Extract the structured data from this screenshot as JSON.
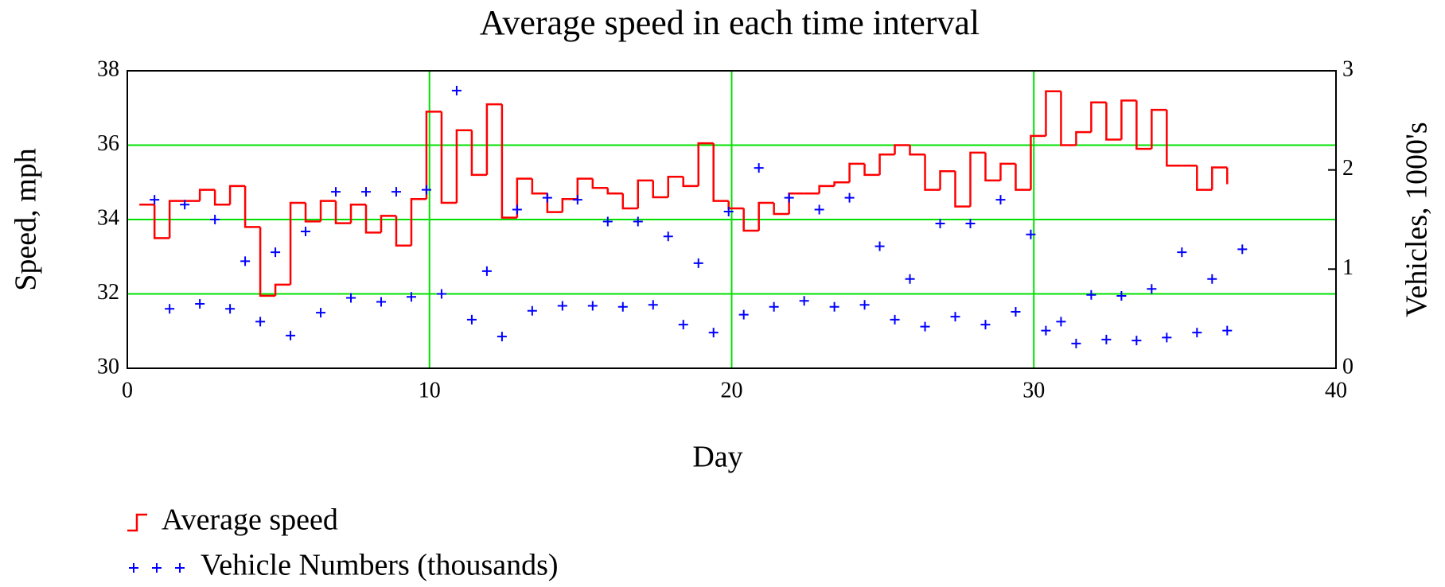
{
  "chart_data": {
    "type": "step",
    "title": "Average speed in each time interval",
    "x_label": "Day",
    "y_label": "Speed, mph",
    "y2_label": "Vehicles, 1000's",
    "xlim": [
      0,
      40
    ],
    "xticks": [
      0,
      10,
      20,
      30,
      40
    ],
    "ylim": [
      30,
      38
    ],
    "yticks": [
      30,
      32,
      34,
      36,
      38
    ],
    "y2lim": [
      0,
      3
    ],
    "y2ticks": [
      0,
      1,
      2,
      3
    ],
    "grid": true,
    "grid_color": "#00e000",
    "series": [
      {
        "name": "Average speed",
        "color": "#ff0000",
        "type": "step",
        "axis": "y",
        "x": [
          0.4,
          0.9,
          1.4,
          1.9,
          2.4,
          2.9,
          3.4,
          3.9,
          4.4,
          4.9,
          5.4,
          5.9,
          6.4,
          6.9,
          7.4,
          7.9,
          8.4,
          8.9,
          9.4,
          9.9,
          10.4,
          10.9,
          11.4,
          11.9,
          12.4,
          12.9,
          13.4,
          13.9,
          14.4,
          14.9,
          15.4,
          15.9,
          16.4,
          16.9,
          17.4,
          17.9,
          18.4,
          18.9,
          19.4,
          19.9,
          20.4,
          20.9,
          21.4,
          21.9,
          22.4,
          22.9,
          23.4,
          23.9,
          24.4,
          24.9,
          25.4,
          25.9,
          26.4,
          26.9,
          27.4,
          27.9,
          28.4,
          28.9,
          29.4,
          29.9,
          30.4,
          30.9,
          31.4,
          31.9,
          32.4,
          32.9,
          33.4,
          33.9,
          34.4,
          34.9,
          35.4,
          35.9,
          36.4
        ],
        "values": [
          34.4,
          33.5,
          34.5,
          34.5,
          34.8,
          34.4,
          34.9,
          33.8,
          31.95,
          32.25,
          34.45,
          33.95,
          34.5,
          33.9,
          34.4,
          33.65,
          34.1,
          33.3,
          34.55,
          36.9,
          34.45,
          36.4,
          35.2,
          37.1,
          34.05,
          35.1,
          34.7,
          34.2,
          34.55,
          35.1,
          34.85,
          34.7,
          34.3,
          35.05,
          34.6,
          35.15,
          34.9,
          36.05,
          34.5,
          34.3,
          33.7,
          34.45,
          34.15,
          34.7,
          34.7,
          34.9,
          35.0,
          35.5,
          35.2,
          35.75,
          36.0,
          35.75,
          34.8,
          35.3,
          34.35,
          35.8,
          35.05,
          35.5,
          34.8,
          36.25,
          37.45,
          36.0,
          36.35,
          37.15,
          36.15,
          37.2,
          35.9,
          36.95,
          35.45,
          35.45,
          34.8,
          35.4,
          34.95
        ]
      },
      {
        "name": "Vehicle Numbers (thousands)",
        "color": "#0000ff",
        "type": "scatter",
        "axis": "y2",
        "x": [
          0.9,
          1.4,
          1.9,
          2.4,
          2.9,
          3.4,
          3.9,
          4.4,
          4.9,
          5.4,
          5.9,
          6.4,
          6.9,
          7.4,
          7.9,
          8.4,
          8.9,
          9.4,
          9.9,
          10.4,
          10.9,
          11.4,
          11.9,
          12.4,
          12.9,
          13.4,
          13.9,
          14.4,
          14.9,
          15.4,
          15.9,
          16.4,
          16.9,
          17.4,
          17.9,
          18.4,
          18.9,
          19.4,
          19.9,
          20.4,
          20.9,
          21.4,
          21.9,
          22.4,
          22.9,
          23.4,
          23.9,
          24.4,
          24.9,
          25.4,
          25.9,
          26.4,
          26.9,
          27.4,
          27.9,
          28.4,
          28.9,
          29.4,
          29.9,
          30.4,
          30.9,
          31.4,
          31.9,
          32.4,
          32.9,
          33.4,
          33.9,
          34.4,
          34.9,
          35.4,
          35.9,
          36.4,
          36.9
        ],
        "values": [
          1.7,
          0.6,
          1.65,
          0.65,
          1.5,
          0.6,
          1.08,
          0.47,
          1.17,
          0.33,
          1.38,
          0.56,
          1.78,
          0.71,
          1.78,
          0.67,
          1.78,
          0.72,
          1.8,
          0.75,
          2.8,
          0.49,
          0.98,
          0.32,
          1.6,
          0.58,
          1.72,
          0.63,
          1.7,
          0.63,
          1.48,
          0.62,
          1.48,
          0.64,
          1.33,
          0.44,
          1.06,
          0.36,
          1.58,
          0.54,
          2.02,
          0.62,
          1.72,
          0.68,
          1.6,
          0.62,
          1.72,
          0.64,
          1.23,
          0.49,
          0.9,
          0.42,
          1.46,
          0.52,
          1.46,
          0.44,
          1.7,
          0.57,
          1.35,
          0.38,
          0.47,
          0.25,
          0.74,
          0.29,
          0.73,
          0.28,
          0.8,
          0.31,
          1.17,
          0.36,
          0.9,
          0.38,
          1.2
        ]
      }
    ]
  }
}
